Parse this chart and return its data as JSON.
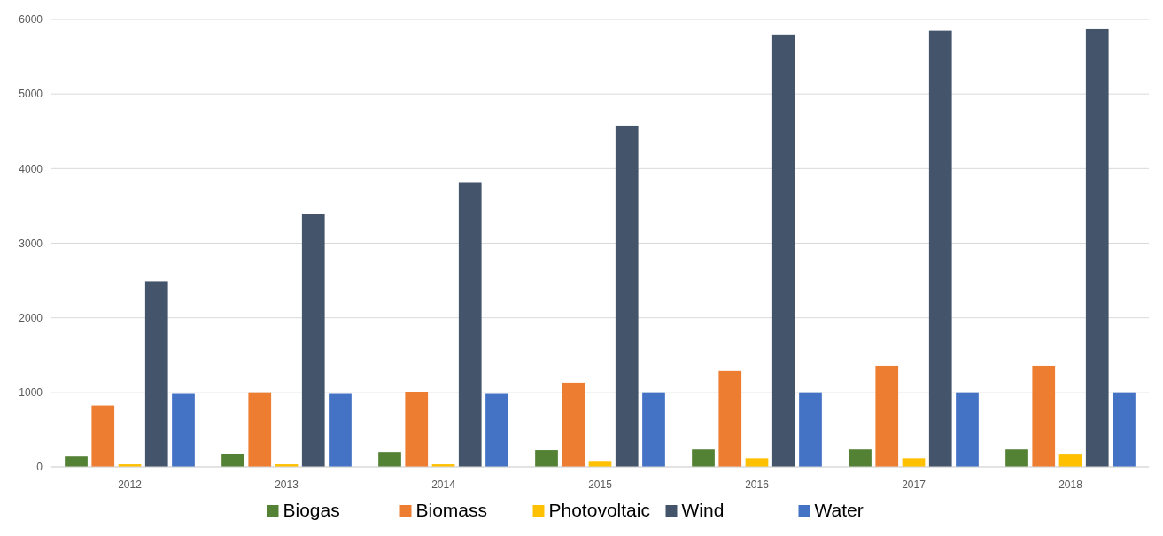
{
  "chart_data": {
    "type": "bar",
    "categories": [
      "2012",
      "2013",
      "2014",
      "2015",
      "2016",
      "2017",
      "2018"
    ],
    "series": [
      {
        "name": "Biogas",
        "color": "#548235",
        "values": [
          140,
          175,
          200,
          225,
          235,
          235,
          235
        ]
      },
      {
        "name": "Biomass",
        "color": "#ed7d31",
        "values": [
          825,
          990,
          1000,
          1130,
          1285,
          1355,
          1355
        ]
      },
      {
        "name": "Photovoltaic",
        "color": "#ffc000",
        "values": [
          35,
          35,
          35,
          80,
          115,
          115,
          165
        ]
      },
      {
        "name": "Wind",
        "color": "#44546a",
        "values": [
          2490,
          3395,
          3820,
          4575,
          5800,
          5850,
          5870
        ]
      },
      {
        "name": "Water",
        "color": "#4472c4",
        "values": [
          980,
          980,
          980,
          990,
          990,
          990,
          990
        ]
      }
    ],
    "ylim": [
      0,
      6000
    ],
    "yticks": [
      0,
      1000,
      2000,
      3000,
      4000,
      5000,
      6000
    ],
    "grid": "y",
    "legend": "bottom"
  }
}
